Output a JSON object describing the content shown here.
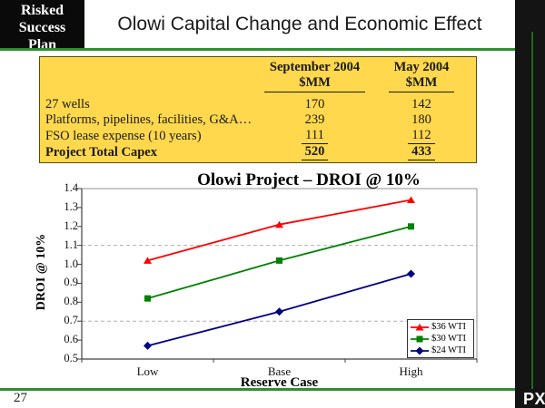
{
  "header": {
    "corner_logo_lines": [
      "Risked",
      "Success",
      "Plan"
    ],
    "corner_logo_overflow": "Plan",
    "title": "Olowi Capital Change and Economic Effect"
  },
  "table": {
    "col_headers": [
      {
        "line1": "September 2004",
        "line2": "$MM"
      },
      {
        "line1": "May 2004",
        "line2": "$MM"
      }
    ],
    "rows": [
      {
        "label": "27 wells",
        "sep2004": "170",
        "may2004": "142"
      },
      {
        "label": "Platforms, pipelines, facilities, G&A…",
        "sep2004": "239",
        "may2004": "180"
      },
      {
        "label": "FSO lease expense (10 years)",
        "sep2004": "111",
        "may2004": "112"
      },
      {
        "label": "Project Total Capex",
        "sep2004": "520",
        "may2004": "433"
      }
    ]
  },
  "chart_data": {
    "type": "line",
    "title": "Olowi Project – DROI @ 10%",
    "xlabel": "Reserve Case",
    "ylabel": "DROI @ 10%",
    "categories": [
      "Low",
      "Base",
      "High"
    ],
    "series": [
      {
        "name": "$36 WTI",
        "color": "#FF0000",
        "marker": "triangle",
        "values": [
          1.02,
          1.21,
          1.34
        ]
      },
      {
        "name": "$30 WTI",
        "color": "#008000",
        "marker": "square",
        "values": [
          0.82,
          1.02,
          1.2
        ]
      },
      {
        "name": "$24 WTI",
        "color": "#000080",
        "marker": "diamond",
        "values": [
          0.57,
          0.75,
          0.95
        ]
      }
    ],
    "ylim": [
      0.5,
      1.4
    ],
    "ytick_step": 0.1,
    "gridlines_at": [
      0.7,
      1.1
    ],
    "grid": "dashed, only at 0.7 and 1.1",
    "legend_position": "bottom-right inside plot"
  },
  "footer": {
    "page_number": "27",
    "brand_logo": "PXD"
  },
  "colors": {
    "accent_green": "#2f8f2f",
    "dark_green": "#1e6b1e",
    "table_yellow": "#FFD84D",
    "table_border": "#4d4d1a",
    "bar_black": "#141414"
  }
}
